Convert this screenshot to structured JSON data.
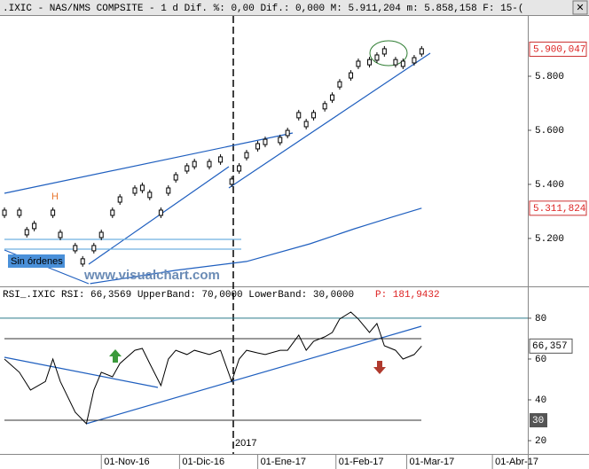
{
  "header": ".IXIC - NAS/NMS COMPSITE - 1 d Dif. %: 0,00 Dif.: 0,000 M: 5.911,204 m: 5.858,158 F: 15-(",
  "chart_data": [
    {
      "type": "price",
      "x": [
        0,
        4,
        6,
        8,
        13,
        15,
        19,
        21,
        24,
        26,
        29,
        31,
        35,
        37,
        39,
        42,
        44,
        46,
        49,
        51,
        55,
        58,
        61,
        63,
        65,
        68,
        70,
        74,
        76,
        79,
        81,
        83,
        86,
        88,
        90,
        93,
        95,
        98,
        100,
        102,
        105,
        107,
        110,
        112
      ],
      "values": [
        5295,
        5295,
        5223,
        5246,
        5295,
        5213,
        5164,
        5115,
        5164,
        5213,
        5295,
        5344,
        5377,
        5387,
        5361,
        5295,
        5377,
        5426,
        5459,
        5475,
        5475,
        5492,
        5410,
        5459,
        5508,
        5541,
        5557,
        5564,
        5590,
        5656,
        5623,
        5656,
        5689,
        5721,
        5770,
        5803,
        5846,
        5852,
        5869,
        5892,
        5852,
        5846,
        5859,
        5892
      ],
      "color": "#000000",
      "xlim": [
        -1.2,
        140.5
      ],
      "ylim": [
        5026,
        6023
      ],
      "yticks": [
        {
          "value": 5200,
          "label": "5.200"
        },
        {
          "value": 5400,
          "label": "5.400"
        },
        {
          "value": 5600,
          "label": "5.600"
        },
        {
          "value": 5800,
          "label": "5.800"
        }
      ],
      "price_labels": [
        {
          "value": 5900.047,
          "label": "5.900,047"
        },
        {
          "value": 5311.824,
          "label": "5.311,824"
        }
      ],
      "moving_average": {
        "x": [
          23,
          46,
          65,
          82,
          94,
          104,
          112
        ],
        "values": [
          5033,
          5082,
          5115,
          5180,
          5236,
          5279,
          5311.824
        ],
        "color": "#1f5fbf"
      },
      "annotations": [
        "H",
        "Sin órdenes",
        "www.visualchart.com"
      ]
    },
    {
      "type": "line",
      "title": "RSI_.IXIC RSI: 66,3569 UpperBand: 70,0000 LowerBand: 30,0000",
      "title_extra": "P: 181,9432",
      "x": [
        0,
        4,
        7,
        11,
        13,
        15,
        19,
        22,
        24,
        26,
        29,
        31,
        35,
        37,
        39,
        42,
        44,
        46,
        49,
        51,
        55,
        58,
        61,
        63,
        65,
        68,
        70,
        74,
        76,
        79,
        81,
        83,
        86,
        88,
        90,
        93,
        95,
        98,
        100,
        102,
        105,
        107,
        110,
        112
      ],
      "values": [
        60,
        53.5,
        44.8,
        49,
        60,
        49,
        33.9,
        28.3,
        44.8,
        53.5,
        51.3,
        57.8,
        64.3,
        65.2,
        57.8,
        47,
        60,
        64.3,
        62.2,
        64.3,
        62.2,
        64.3,
        49,
        60,
        64.3,
        63,
        62.2,
        64.3,
        64.3,
        71.7,
        64.3,
        68.7,
        70.9,
        73,
        79.6,
        83,
        79.6,
        73,
        77.4,
        66.5,
        64.3,
        60,
        62.2,
        66.357
      ],
      "color": "#000000",
      "xlim": [
        -1.2,
        140.5
      ],
      "ylim": [
        13.5,
        94.3
      ],
      "yticks": [
        20,
        40,
        60,
        80
      ],
      "level_line": 80,
      "upper_band": 70,
      "lower_band": 30,
      "last_label": {
        "value": 66.357,
        "label": "66,357"
      },
      "band_label": {
        "value": 30,
        "label": "30"
      },
      "xticks": [
        {
          "value": 26,
          "label": "01-Nov-16"
        },
        {
          "value": 47,
          "label": "01-Dic-16"
        },
        {
          "value": 68,
          "label": "01-Ene-17"
        },
        {
          "value": 89,
          "label": "01-Feb-17"
        },
        {
          "value": 108,
          "label": "01-Mar-17"
        },
        {
          "value": 131,
          "label": "01-Abr-17"
        }
      ],
      "year_label": "2017"
    }
  ]
}
